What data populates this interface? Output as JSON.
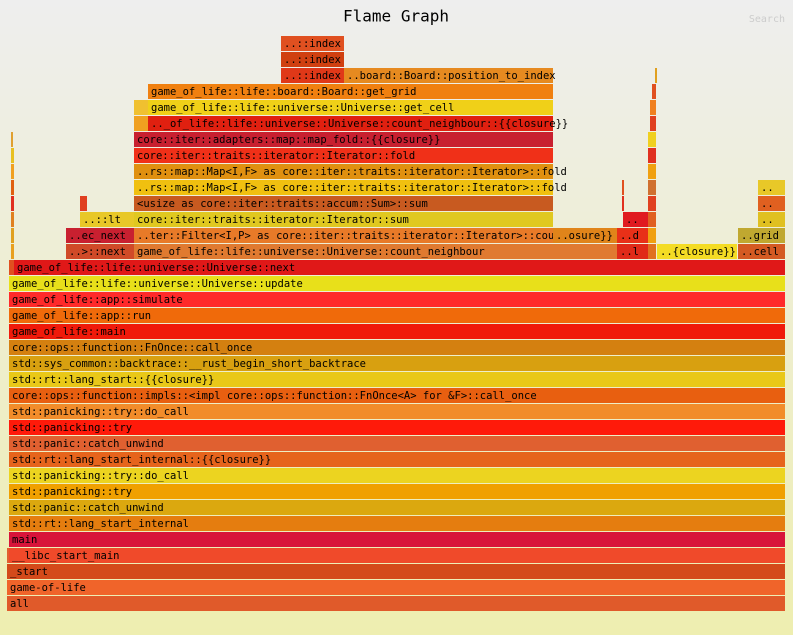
{
  "title": "Flame Graph",
  "search": "Search",
  "frames": [
    {
      "label": "all"
    },
    {
      "label": "game-of-life"
    },
    {
      "label": "_start"
    },
    {
      "label": "__libc_start_main"
    },
    {
      "label": "main"
    },
    {
      "label": "std::rt::lang_start_internal"
    },
    {
      "label": "std::panic::catch_unwind"
    },
    {
      "label": "std::panicking::try"
    },
    {
      "label": "std::panicking::try::do_call"
    },
    {
      "label": "std::rt::lang_start_internal::{{closure}}"
    },
    {
      "label": "std::panic::catch_unwind"
    },
    {
      "label": "std::panicking::try"
    },
    {
      "label": "std::panicking::try::do_call"
    },
    {
      "label": "core::ops::function::impls::<impl core::ops::function::FnOnce<A> for &F>::call_once"
    },
    {
      "label": "std::rt::lang_start::{{closure}}"
    },
    {
      "label": "std::sys_common::backtrace::__rust_begin_short_backtrace"
    },
    {
      "label": "core::ops::function::FnOnce::call_once"
    },
    {
      "label": "game_of_life::main"
    },
    {
      "label": "game_of_life::app::run"
    },
    {
      "label": "game_of_life::app::simulate"
    },
    {
      "label": "game_of_life::life::universe::Universe::update"
    },
    {
      "label": "game_of_life::life::universe::Universe::next"
    },
    {
      "label": "..>::next"
    },
    {
      "label": "game_of_life::life::universe::Universe::count_neighbour"
    },
    {
      "label": "..l"
    },
    {
      "label": "..{closure}}"
    },
    {
      "label": "..cell"
    },
    {
      "label": "..ec_next"
    },
    {
      "label": "..ter::Filter<I,P> as core::iter::traits::iterator::Iterator>::count"
    },
    {
      "label": "..osure}}"
    },
    {
      "label": "..d"
    },
    {
      "label": "..grid"
    },
    {
      "label": "..::lt"
    },
    {
      "label": "core::iter::traits::iterator::Iterator::sum"
    },
    {
      "label": ".."
    },
    {
      "label": ".."
    },
    {
      "label": "<usize as core::iter::traits::accum::Sum>::sum"
    },
    {
      "label": ".."
    },
    {
      "label": "..rs::map::Map<I,F> as core::iter::traits::iterator::Iterator>::fold"
    },
    {
      "label": ".."
    },
    {
      "label": "..rs::map::Map<I,F> as core::iter::traits::iterator::Iterator>::fold"
    },
    {
      "label": "core::iter::traits::iterator::Iterator::fold"
    },
    {
      "label": "core::iter::adapters::map::map_fold::{{closure}}"
    },
    {
      "label": ".._of_life::life::universe::Universe::count_neighbour::{{closure}}"
    },
    {
      "label": "game_of_life::life::universe::Universe::get_cell"
    },
    {
      "label": "game_of_life::life::board::Board::get_grid"
    },
    {
      "label": "..::index"
    },
    {
      "label": "..board::Board::position_to_index"
    },
    {
      "label": "..::index"
    },
    {
      "label": "..::index"
    }
  ]
}
